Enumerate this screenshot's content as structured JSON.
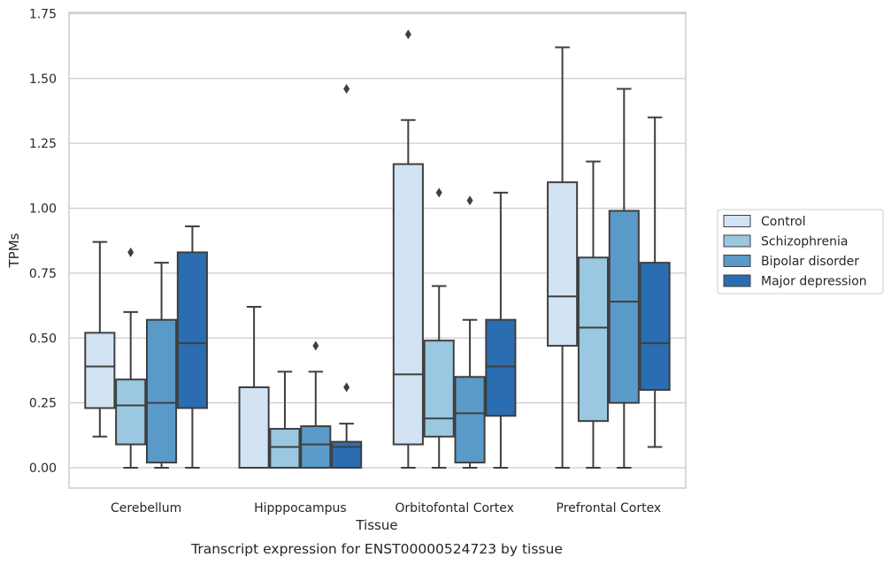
{
  "chart_data": {
    "type": "box",
    "xlabel": "Tissue",
    "ylabel": "TPMs",
    "caption": "Transcript expression for ENST00000524723 by tissue",
    "ylim": [
      -0.08,
      1.76
    ],
    "yticks": [
      0.0,
      0.25,
      0.5,
      0.75,
      1.0,
      1.25,
      1.5,
      1.75
    ],
    "ytick_labels": [
      "0.00",
      "0.25",
      "0.50",
      "0.75",
      "1.00",
      "1.25",
      "1.50",
      "1.75"
    ],
    "grid": "horizontal",
    "legend_position": "outside-right",
    "categories": [
      "Cerebellum",
      "Hipppocampus",
      "Orbitofontal Cortex",
      "Prefrontal Cortex"
    ],
    "series": [
      {
        "name": "Control",
        "color": "#d2e3f3",
        "boxes": [
          {
            "whislo": 0.12,
            "q1": 0.23,
            "med": 0.39,
            "q3": 0.52,
            "whishi": 0.87,
            "fliers": []
          },
          {
            "whislo": 0.0,
            "q1": 0.0,
            "med": 0.0,
            "q3": 0.31,
            "whishi": 0.62,
            "fliers": []
          },
          {
            "whislo": 0.0,
            "q1": 0.09,
            "med": 0.36,
            "q3": 1.17,
            "whishi": 1.34,
            "fliers": [
              1.67
            ]
          },
          {
            "whislo": 0.0,
            "q1": 0.47,
            "med": 0.66,
            "q3": 1.1,
            "whishi": 1.62,
            "fliers": []
          }
        ]
      },
      {
        "name": "Schizophrenia",
        "color": "#9ac8e0",
        "boxes": [
          {
            "whislo": 0.0,
            "q1": 0.09,
            "med": 0.24,
            "q3": 0.34,
            "whishi": 0.6,
            "fliers": [
              0.83
            ]
          },
          {
            "whislo": 0.0,
            "q1": 0.0,
            "med": 0.08,
            "q3": 0.15,
            "whishi": 0.37,
            "fliers": []
          },
          {
            "whislo": 0.0,
            "q1": 0.12,
            "med": 0.19,
            "q3": 0.49,
            "whishi": 0.7,
            "fliers": [
              1.06
            ]
          },
          {
            "whislo": 0.0,
            "q1": 0.18,
            "med": 0.54,
            "q3": 0.81,
            "whishi": 1.18,
            "fliers": []
          }
        ]
      },
      {
        "name": "Bipolar disorder",
        "color": "#5a9ac9",
        "boxes": [
          {
            "whislo": 0.0,
            "q1": 0.02,
            "med": 0.25,
            "q3": 0.57,
            "whishi": 0.79,
            "fliers": []
          },
          {
            "whislo": 0.0,
            "q1": 0.0,
            "med": 0.09,
            "q3": 0.16,
            "whishi": 0.37,
            "fliers": [
              0.47
            ]
          },
          {
            "whislo": 0.0,
            "q1": 0.02,
            "med": 0.21,
            "q3": 0.35,
            "whishi": 0.57,
            "fliers": [
              1.03
            ]
          },
          {
            "whislo": 0.0,
            "q1": 0.25,
            "med": 0.64,
            "q3": 0.99,
            "whishi": 1.46,
            "fliers": []
          }
        ]
      },
      {
        "name": "Major depression",
        "color": "#2a6db0",
        "boxes": [
          {
            "whislo": 0.0,
            "q1": 0.23,
            "med": 0.48,
            "q3": 0.83,
            "whishi": 0.93,
            "fliers": []
          },
          {
            "whislo": 0.0,
            "q1": 0.0,
            "med": 0.08,
            "q3": 0.1,
            "whishi": 0.17,
            "fliers": [
              0.31,
              1.46
            ]
          },
          {
            "whislo": 0.0,
            "q1": 0.2,
            "med": 0.39,
            "q3": 0.57,
            "whishi": 1.06,
            "fliers": []
          },
          {
            "whislo": 0.08,
            "q1": 0.3,
            "med": 0.48,
            "q3": 0.79,
            "whishi": 1.35,
            "fliers": []
          }
        ]
      }
    ]
  }
}
